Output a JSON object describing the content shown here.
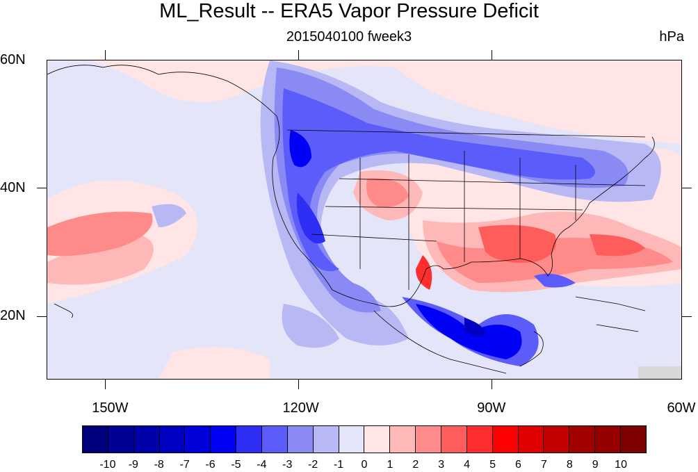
{
  "title": "ML_Result -- ERA5 Vapor Pressure Deficit",
  "subtitle": "2015040100 fweek3",
  "units": "hPa",
  "map": {
    "lon_range": [
      -160,
      -60
    ],
    "lat_range": [
      10,
      60
    ],
    "lat_labels": [
      {
        "text": "60N",
        "lat": 60
      },
      {
        "text": "40N",
        "lat": 40
      },
      {
        "text": "20N",
        "lat": 20
      }
    ],
    "lon_labels": [
      {
        "text": "150W",
        "lon": -150
      },
      {
        "text": "120W",
        "lon": -120
      },
      {
        "text": "90W",
        "lon": -90
      },
      {
        "text": "60W",
        "lon": -60
      }
    ],
    "colors": {
      "ocean_background": "#e5e5fa",
      "coastline": "#000000"
    }
  },
  "colorbar": {
    "labels": [
      "-10",
      "-9",
      "-8",
      "-7",
      "-6",
      "-5",
      "-4",
      "-3",
      "-2",
      "-1",
      "0",
      "1",
      "2",
      "3",
      "4",
      "5",
      "6",
      "7",
      "8",
      "9",
      "10"
    ],
    "colors": [
      "#00007f",
      "#000094",
      "#0000aa",
      "#0000c3",
      "#0000db",
      "#0000f5",
      "#2e2ef5",
      "#5c5cfa",
      "#8a8af5",
      "#b8b8f5",
      "#e5e5fa",
      "#ffe5e5",
      "#ffb8b8",
      "#ff8a8a",
      "#ff5c5c",
      "#ff2e2e",
      "#ff0000",
      "#e00000",
      "#c20000",
      "#a30000",
      "#940000",
      "#7f0000"
    ]
  }
}
